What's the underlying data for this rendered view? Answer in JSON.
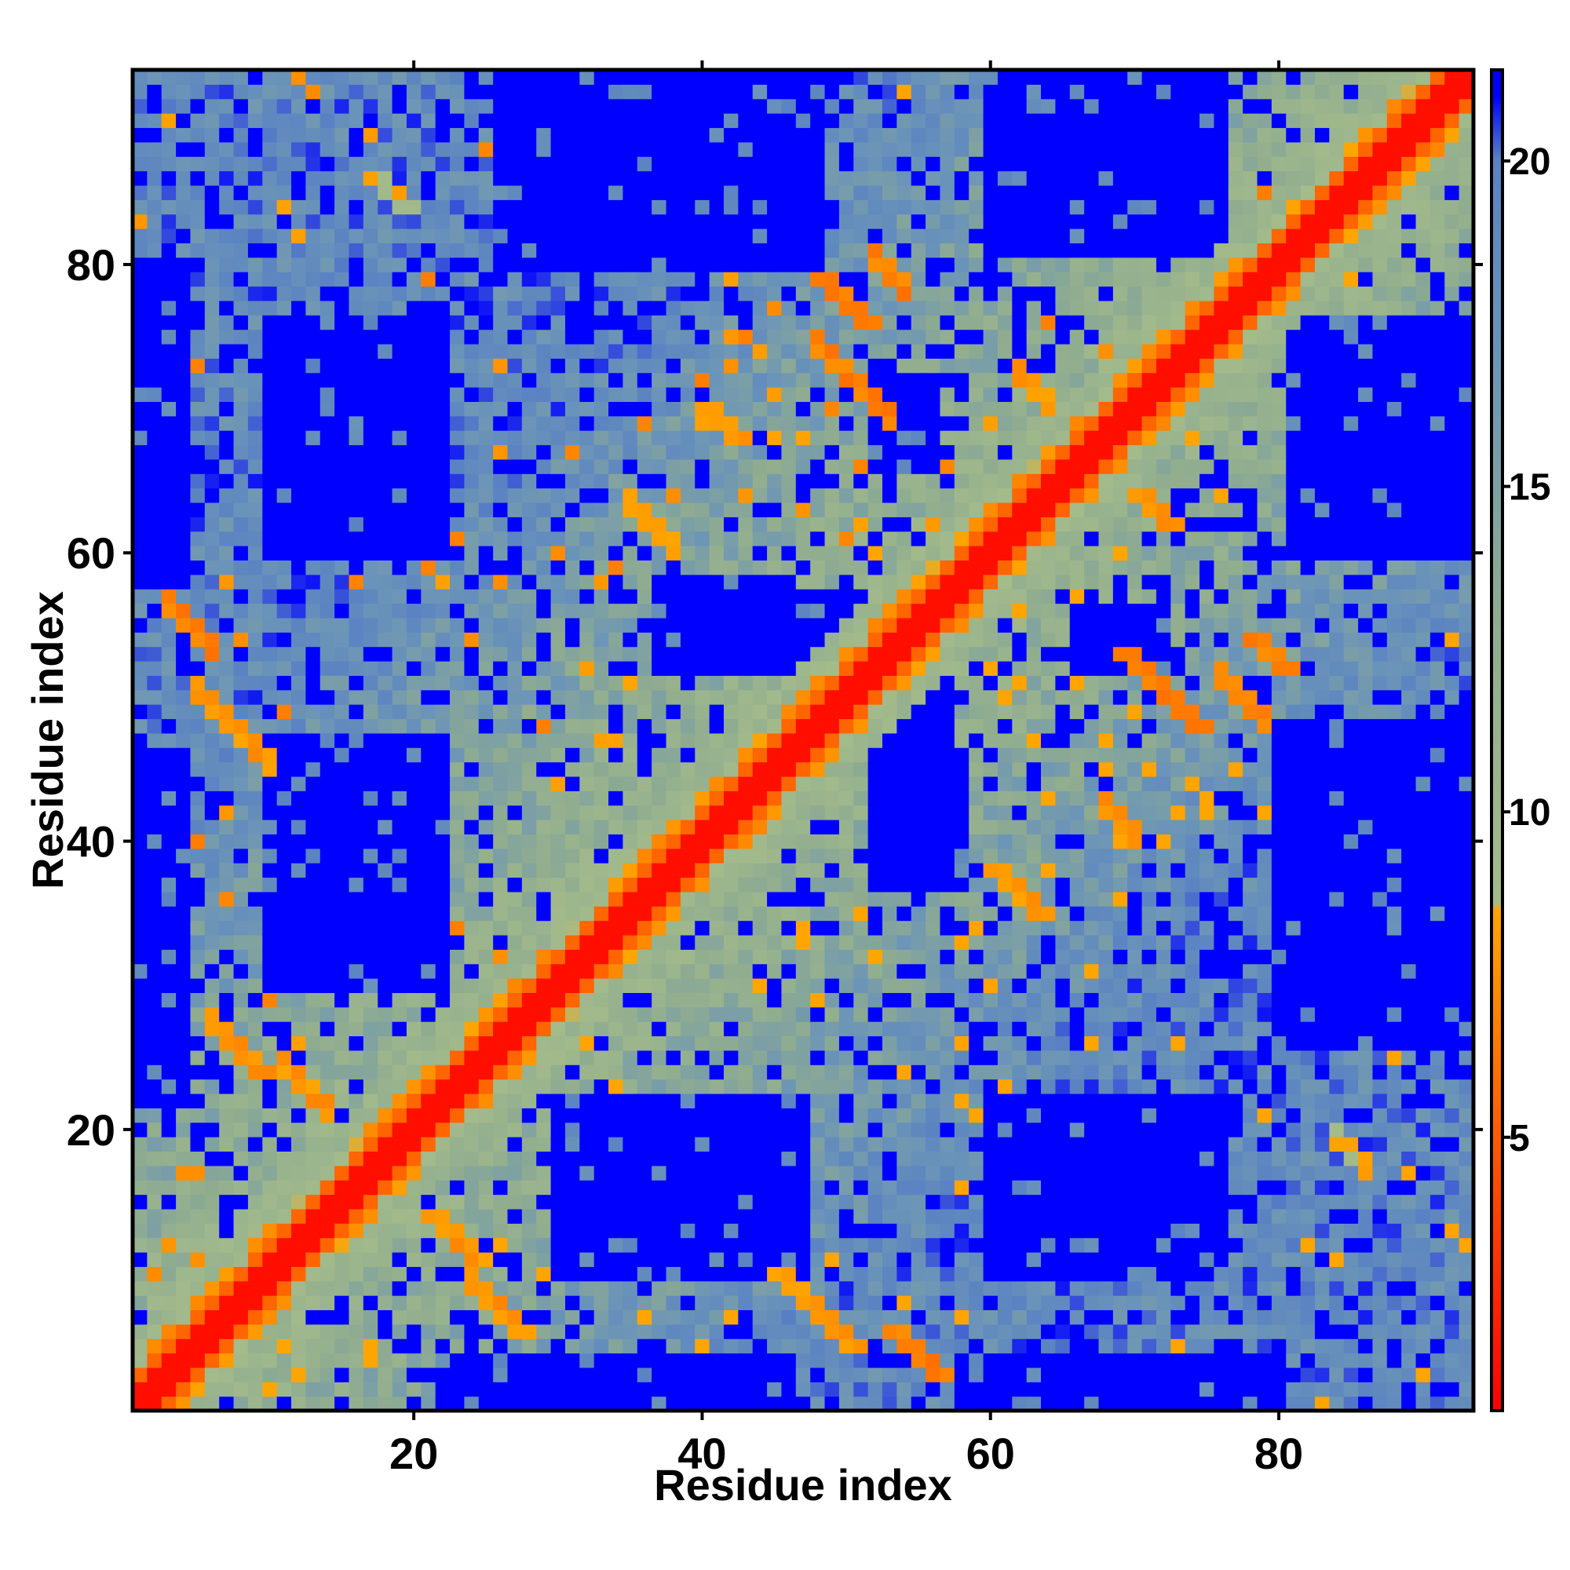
{
  "chart_data": {
    "type": "heatmap",
    "title": "",
    "xlabel": "Residue index",
    "ylabel": "Residue index",
    "n_residues": 93,
    "xlim": [
      0.5,
      93.5
    ],
    "ylim": [
      0.5,
      93.5
    ],
    "x_ticks": [
      20,
      40,
      60,
      80
    ],
    "y_ticks": [
      20,
      40,
      60,
      80
    ],
    "colorbar": {
      "range": [
        0.8,
        21.4
      ],
      "ticks": [
        5,
        10,
        15,
        20
      ],
      "color_stops": [
        {
          "value": 0.8,
          "color": "#ff0000"
        },
        {
          "value": 4.5,
          "color": "#ff5000"
        },
        {
          "value": 8.5,
          "color": "#ffa500"
        },
        {
          "value": 8.6,
          "color": "#a4bb8a"
        },
        {
          "value": 13.0,
          "color": "#8fac90"
        },
        {
          "value": 17.0,
          "color": "#6b94b8"
        },
        {
          "value": 20.0,
          "color": "#5b83c2"
        },
        {
          "value": 21.0,
          "color": "#0000ff"
        }
      ]
    },
    "far_color": "#0000ff",
    "structure_note": "Symmetric residue-residue distance map; red diagonal with orange off-diagonal contacts; blue regions are distances beyond cutoff.",
    "contact_bands": [
      {
        "i_start": 1,
        "j_start": 3,
        "length": 90,
        "value": 6
      },
      {
        "i_start": 3,
        "j_start": 56,
        "length": 4,
        "value": 6
      },
      {
        "i_start": 5,
        "j_start": 50,
        "length": 6,
        "value": 7
      },
      {
        "i_start": 6,
        "j_start": 27,
        "length": 4,
        "value": 7
      },
      {
        "i_start": 11,
        "j_start": 24,
        "length": 4,
        "value": 7
      },
      {
        "i_start": 24,
        "j_start": 9,
        "length": 3,
        "value": 7
      },
      {
        "i_start": 35,
        "j_start": 63,
        "length": 4,
        "value": 7
      },
      {
        "i_start": 48,
        "j_start": 74,
        "length": 6,
        "value": 6
      },
      {
        "i_start": 52,
        "j_start": 80,
        "length": 3,
        "value": 6
      },
      {
        "i_start": 62,
        "j_start": 72,
        "length": 10,
        "value": 7
      },
      {
        "i_start": 76,
        "j_start": 51,
        "length": 4,
        "value": 6
      },
      {
        "i_start": 84,
        "j_start": 19,
        "length": 3,
        "value": 8
      },
      {
        "i_start": 68,
        "j_start": 42,
        "length": 3,
        "value": 7
      }
    ],
    "blue_domains": [
      {
        "x": [
          26,
          48
        ],
        "y": [
          80,
          93
        ]
      },
      {
        "x": [
          62,
          76
        ],
        "y": [
          82,
          93
        ]
      },
      {
        "x": [
          10,
          22
        ],
        "y": [
          60,
          76
        ]
      },
      {
        "x": [
          81,
          93
        ],
        "y": [
          60,
          76
        ]
      },
      {
        "x": [
          10,
          22
        ],
        "y": [
          30,
          46
        ]
      },
      {
        "x": [
          81,
          93
        ],
        "y": [
          30,
          46
        ]
      },
      {
        "x": [
          31,
          47
        ],
        "y": [
          10,
          22
        ]
      },
      {
        "x": [
          65,
          76
        ],
        "y": [
          10,
          22
        ]
      },
      {
        "x": [
          1,
          4
        ],
        "y": [
          58,
          80
        ]
      },
      {
        "x": [
          1,
          4
        ],
        "y": [
          22,
          46
        ]
      },
      {
        "x": [
          53,
          57
        ],
        "y": [
          44,
          52
        ]
      },
      {
        "x": [
          37,
          46
        ],
        "y": [
          52,
          58
        ]
      },
      {
        "x": [
          52,
          56
        ],
        "y": [
          66,
          72
        ]
      }
    ]
  }
}
